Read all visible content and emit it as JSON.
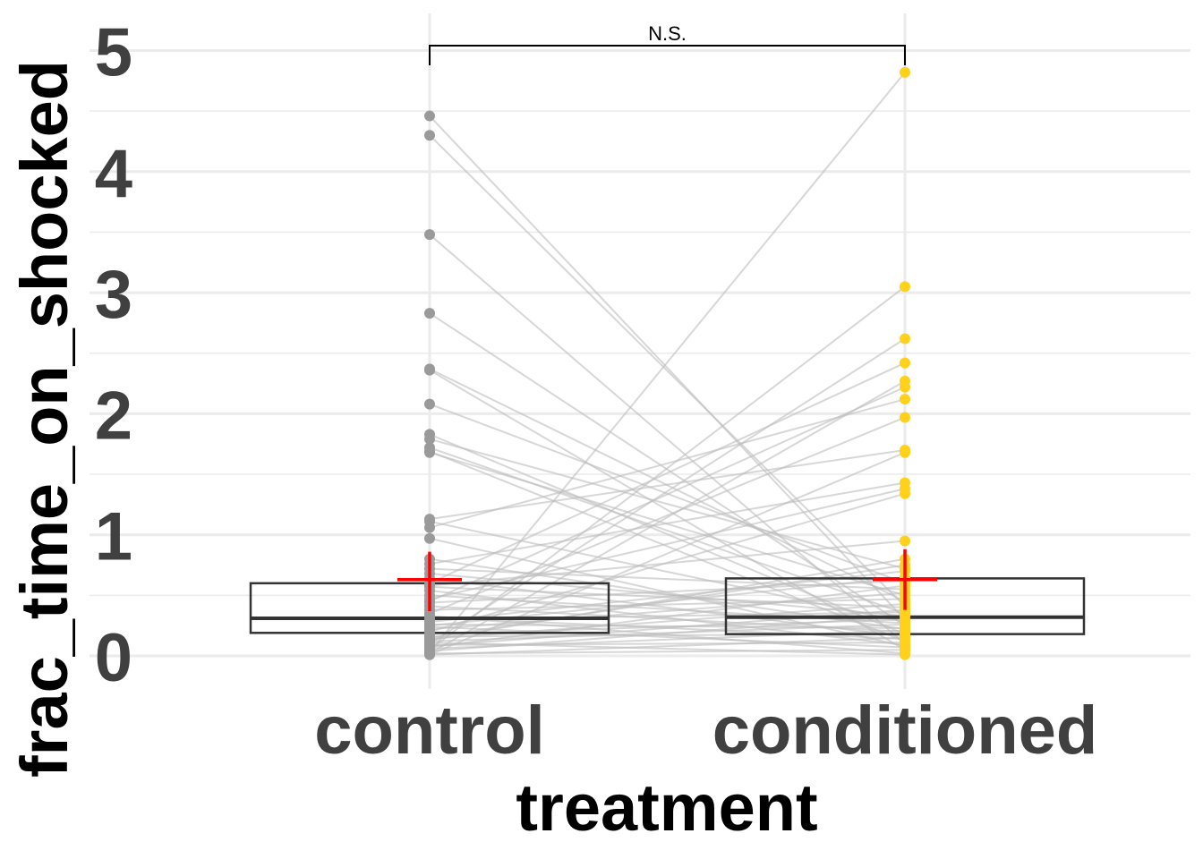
{
  "chart_data": {
    "type": "box",
    "xlabel": "treatment",
    "ylabel": "frac_time_on_shocked",
    "categories": [
      "control",
      "conditioned"
    ],
    "ylim": [
      0,
      5.1
    ],
    "yticks": [
      "0",
      "1",
      "2",
      "3",
      "4",
      "5"
    ],
    "grid": true,
    "significance": {
      "label": "N.S.",
      "between": [
        "control",
        "conditioned"
      ]
    },
    "colors": {
      "control_points": "#9a9a9a",
      "conditioned_points": "#ffd11a",
      "lines": "#bdbdbd",
      "mean_marker": "#ff0000",
      "box": "#333333",
      "grid": "#ebebeb"
    },
    "boxes": [
      {
        "category": "control",
        "q1": 0.19,
        "median": 0.31,
        "q3": 0.6,
        "mean": 0.63,
        "mean_err": [
          0.37,
          0.86
        ]
      },
      {
        "category": "conditioned",
        "q1": 0.18,
        "median": 0.32,
        "q3": 0.64,
        "mean": 0.63,
        "mean_err": [
          0.38,
          0.88
        ]
      }
    ],
    "pairs": [
      [
        4.46,
        0.3
      ],
      [
        4.3,
        0.41
      ],
      [
        3.48,
        0.1
      ],
      [
        2.83,
        0.25
      ],
      [
        2.37,
        0.45
      ],
      [
        2.36,
        0.05
      ],
      [
        2.08,
        0.6
      ],
      [
        1.83,
        0.18
      ],
      [
        1.79,
        0.72
      ],
      [
        1.72,
        0.35
      ],
      [
        1.69,
        0.12
      ],
      [
        1.68,
        0.5
      ],
      [
        1.13,
        1.7
      ],
      [
        1.11,
        0.28
      ],
      [
        1.06,
        2.12
      ],
      [
        0.97,
        0.08
      ],
      [
        0.8,
        0.22
      ],
      [
        0.76,
        1.43
      ],
      [
        0.72,
        0.55
      ],
      [
        0.68,
        0.33
      ],
      [
        0.64,
        0.16
      ],
      [
        0.6,
        2.42
      ],
      [
        0.57,
        0.4
      ],
      [
        0.54,
        0.09
      ],
      [
        0.5,
        0.27
      ],
      [
        0.47,
        1.38
      ],
      [
        0.44,
        0.62
      ],
      [
        0.41,
        0.2
      ],
      [
        0.38,
        0.47
      ],
      [
        0.35,
        1.97
      ],
      [
        0.32,
        0.14
      ],
      [
        0.3,
        0.36
      ],
      [
        0.28,
        0.7
      ],
      [
        0.26,
        0.23
      ],
      [
        0.24,
        0.07
      ],
      [
        0.22,
        0.52
      ],
      [
        0.2,
        1.34
      ],
      [
        0.18,
        0.3
      ],
      [
        0.16,
        0.18
      ],
      [
        0.14,
        0.43
      ],
      [
        0.13,
        0.8
      ],
      [
        0.12,
        0.26
      ],
      [
        0.1,
        2.62
      ],
      [
        0.09,
        0.11
      ],
      [
        0.08,
        0.38
      ],
      [
        0.07,
        0.58
      ],
      [
        0.06,
        0.21
      ],
      [
        0.05,
        3.05
      ],
      [
        0.04,
        0.33
      ],
      [
        0.03,
        4.82
      ],
      [
        0.02,
        0.05
      ],
      [
        0.02,
        2.27
      ],
      [
        0.01,
        0.15
      ],
      [
        0.01,
        1.68
      ],
      [
        0.45,
        2.22
      ],
      [
        0.33,
        0.02
      ],
      [
        0.25,
        0.65
      ],
      [
        0.15,
        0.75
      ],
      [
        0.11,
        0.01
      ],
      [
        0.58,
        0.95
      ]
    ]
  }
}
